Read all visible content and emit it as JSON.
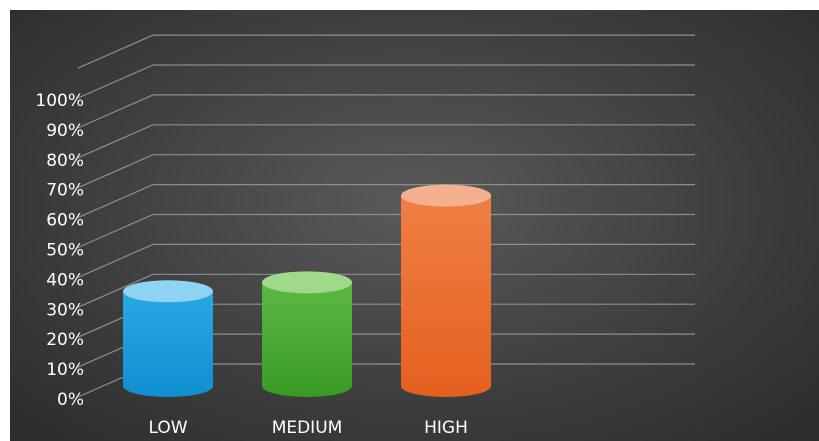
{
  "chart_data": {
    "type": "bar",
    "style": "3d-cylinder",
    "categories": [
      "LOW",
      "MEDIUM",
      "HIGH"
    ],
    "values": [
      31,
      34,
      63
    ],
    "colors": {
      "LOW": {
        "top": "#8fd3f5",
        "body_light": "#29a9e3",
        "body_dark": "#0f8fd0"
      },
      "MEDIUM": {
        "top": "#9fd98a",
        "body_light": "#5bb844",
        "body_dark": "#3a9a24"
      },
      "HIGH": {
        "top": "#f4b08f",
        "body_light": "#f07f44",
        "body_dark": "#e4601f"
      }
    },
    "ylim": [
      0,
      100
    ],
    "ytick_labels": [
      "0%",
      "10%",
      "20%",
      "30%",
      "40%",
      "50%",
      "60%",
      "70%",
      "80%",
      "90%",
      "100%"
    ],
    "grid": true,
    "background": "#3f3f3f",
    "title": "",
    "xlabel": "",
    "ylabel": ""
  }
}
